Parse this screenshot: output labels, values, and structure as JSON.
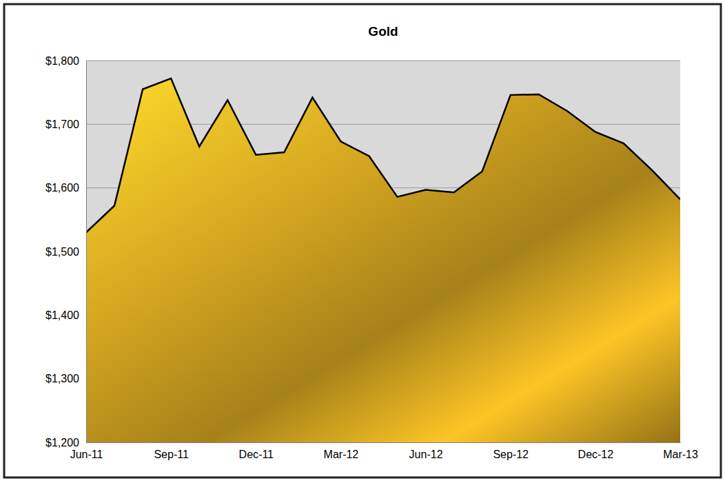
{
  "chart_data": {
    "type": "area",
    "title": "Gold",
    "categories": [
      "Jun-11",
      null,
      null,
      "Sep-11",
      null,
      null,
      "Dec-11",
      null,
      null,
      "Mar-12",
      null,
      null,
      "Jun-12",
      null,
      null,
      "Sep-12",
      null,
      null,
      "Dec-12",
      null,
      null,
      "Mar-13"
    ],
    "values": [
      1530,
      1572,
      1755,
      1772,
      1665,
      1738,
      1652,
      1656,
      1742,
      1673,
      1650,
      1586,
      1597,
      1593,
      1626,
      1746,
      1747,
      1721,
      1688,
      1670,
      1628,
      1582
    ],
    "color": "#d4a520",
    "ylim": [
      1200,
      1800
    ],
    "yticks": [
      {
        "value": 1200,
        "label": "$1,200"
      },
      {
        "value": 1300,
        "label": "$1,300"
      },
      {
        "value": 1400,
        "label": "$1,400"
      },
      {
        "value": 1500,
        "label": "$1,500"
      },
      {
        "value": 1600,
        "label": "$1,600"
      },
      {
        "value": 1700,
        "label": "$1,700"
      },
      {
        "value": 1800,
        "label": "$1,800"
      }
    ],
    "grid": true
  }
}
